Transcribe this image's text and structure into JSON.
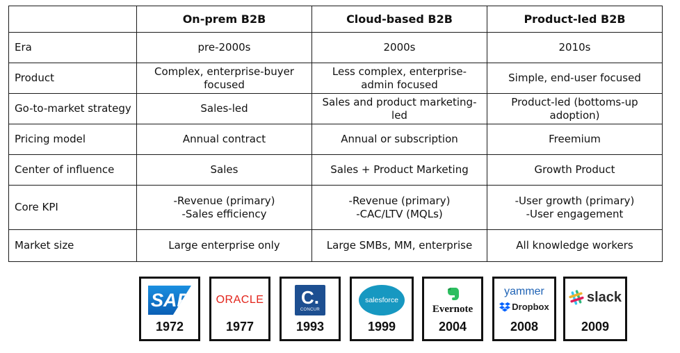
{
  "table": {
    "headers": [
      "",
      "On-prem B2B",
      "Cloud-based B2B",
      "Product-led B2B"
    ],
    "rows": [
      {
        "label": "Era",
        "values": [
          "pre-2000s",
          "2000s",
          "2010s"
        ]
      },
      {
        "label": "Product",
        "values": [
          "Complex, enterprise-buyer focused",
          "Less complex, enterprise-admin focused",
          "Simple, end-user focused"
        ]
      },
      {
        "label": "Go-to-market strategy",
        "values": [
          "Sales-led",
          "Sales and product marketing-led",
          "Product-led (bottoms-up adoption)"
        ]
      },
      {
        "label": "Pricing model",
        "values": [
          "Annual contract",
          "Annual or subscription",
          "Freemium"
        ]
      },
      {
        "label": "Center of influence",
        "values": [
          "Sales",
          "Sales + Product Marketing",
          "Growth Product"
        ]
      },
      {
        "label": "Core KPI",
        "values": [
          "-Revenue (primary)\n-Sales efficiency",
          "-Revenue (primary)\n-CAC/LTV (MQLs)",
          "-User growth (primary)\n-User engagement"
        ]
      },
      {
        "label": "Market size",
        "values": [
          "Large enterprise only",
          "Large SMBs, MM, enterprise",
          "All knowledge workers"
        ]
      }
    ]
  },
  "logos": [
    {
      "name": "SAP",
      "year": "1972",
      "icon": "sap-logo"
    },
    {
      "name": "ORACLE",
      "year": "1977",
      "icon": "oracle-logo"
    },
    {
      "name": "CONCUR",
      "year": "1993",
      "icon": "concur-logo"
    },
    {
      "name": "salesforce",
      "year": "1999",
      "icon": "salesforce-logo"
    },
    {
      "name": "Evernote",
      "year": "2004",
      "icon": "evernote-logo"
    },
    {
      "name": "yammer",
      "name2": "Dropbox",
      "year": "2008",
      "icon": "yammer-dropbox-logo"
    },
    {
      "name": "slack",
      "year": "2009",
      "icon": "slack-logo"
    }
  ],
  "colors": {
    "sap": "#1a8fe0",
    "oracle": "#e2231a",
    "concur": "#1d4f91",
    "salesforce": "#1798c1",
    "evernote": "#2dbe60",
    "yammer": "#1f63b5",
    "dropbox": "#0061fe"
  }
}
